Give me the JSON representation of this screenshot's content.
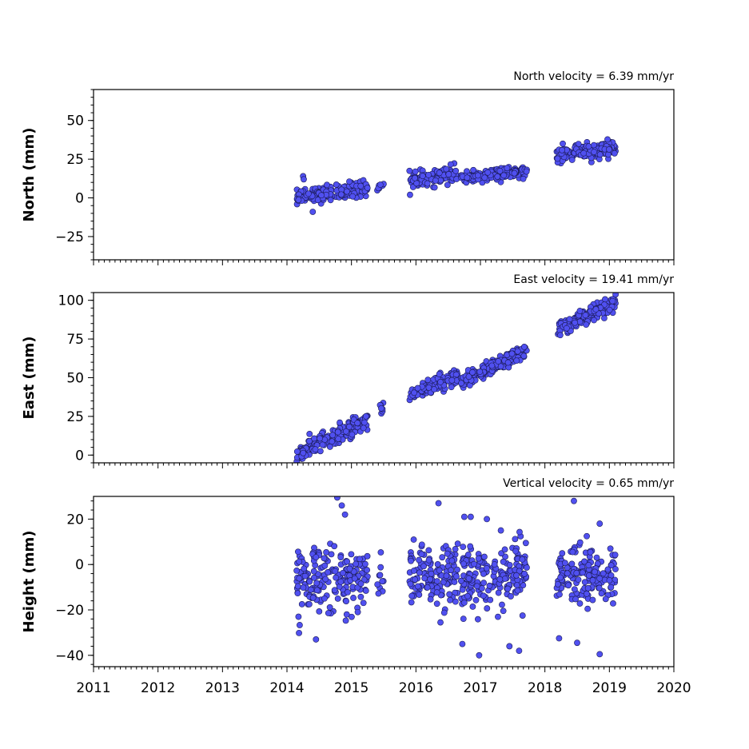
{
  "colors": {
    "marker_fill": "#5050f0",
    "marker_edge": "#1a1a55",
    "axes": "#000000",
    "background": "#ffffff"
  },
  "chart_data": [
    {
      "type": "scatter",
      "ylabel": "North (mm)",
      "annotation": "North velocity = 6.39 mm/yr",
      "xlim": [
        2011,
        2020
      ],
      "ylim": [
        -40,
        70
      ],
      "yticks": [
        -25,
        0,
        25,
        50
      ],
      "xticks": [
        2011,
        2012,
        2013,
        2014,
        2015,
        2016,
        2017,
        2018,
        2019,
        2020
      ],
      "show_xticklabels": false,
      "velocity_mm_per_yr": 6.39,
      "segments": [
        {
          "start": 2014.15,
          "end": 2015.25,
          "y_at_2014": -1.0,
          "slope": 6.39,
          "scatter": 2.5,
          "n": 190
        },
        {
          "start": 2015.4,
          "end": 2015.5,
          "y_at_2014": -1.0,
          "slope": 6.39,
          "scatter": 2.0,
          "n": 8
        },
        {
          "start": 2015.9,
          "end": 2016.65,
          "y_at_2014": -1.5,
          "slope": 6.39,
          "scatter": 2.5,
          "n": 120
        },
        {
          "start": 2016.7,
          "end": 2017.72,
          "y_at_2014": 1.5,
          "slope": 4.2,
          "scatter": 1.8,
          "n": 170
        },
        {
          "start": 2018.18,
          "end": 2019.1,
          "y_at_2014": 0.0,
          "slope": 6.39,
          "scatter": 2.5,
          "n": 160
        }
      ],
      "outliers": [
        {
          "x": 2014.25,
          "y": 14
        },
        {
          "x": 2014.26,
          "y": 12
        },
        {
          "x": 2014.4,
          "y": -9
        }
      ]
    },
    {
      "type": "scatter",
      "ylabel": "East (mm)",
      "annotation": "East velocity = 19.41 mm/yr",
      "xlim": [
        2011,
        2020
      ],
      "ylim": [
        -5,
        105
      ],
      "yticks": [
        0,
        25,
        50,
        75,
        100
      ],
      "xticks": [
        2011,
        2012,
        2013,
        2014,
        2015,
        2016,
        2017,
        2018,
        2019,
        2020
      ],
      "show_xticklabels": false,
      "velocity_mm_per_yr": 19.41,
      "segments": [
        {
          "start": 2014.15,
          "end": 2015.25,
          "y_at_2014": -2.0,
          "slope": 19.41,
          "scatter": 2.8,
          "n": 190
        },
        {
          "start": 2015.4,
          "end": 2015.5,
          "y_at_2014": 2.0,
          "slope": 19.41,
          "scatter": 3.0,
          "n": 8
        },
        {
          "start": 2015.9,
          "end": 2016.65,
          "y_at_2014": 1.0,
          "slope": 19.41,
          "scatter": 2.5,
          "n": 120
        },
        {
          "start": 2016.7,
          "end": 2017.72,
          "y_at_2014": -5.0,
          "slope": 19.41,
          "scatter": 2.5,
          "n": 170
        },
        {
          "start": 2018.18,
          "end": 2019.1,
          "y_at_2014": -0.5,
          "slope": 19.41,
          "scatter": 2.5,
          "n": 160
        }
      ],
      "outliers": []
    },
    {
      "type": "scatter",
      "ylabel": "Height (mm)",
      "annotation": "Vertical velocity = 0.65 mm/yr",
      "xlim": [
        2011,
        2020
      ],
      "ylim": [
        -45,
        30
      ],
      "yticks": [
        -40,
        -20,
        0,
        20
      ],
      "xticks": [
        2011,
        2012,
        2013,
        2014,
        2015,
        2016,
        2017,
        2018,
        2019,
        2020
      ],
      "xticklabels": [
        "2011",
        "2012",
        "2013",
        "2014",
        "2015",
        "2016",
        "2017",
        "2018",
        "2019",
        "2020"
      ],
      "show_xticklabels": true,
      "velocity_mm_per_yr": 0.65,
      "segments": [
        {
          "start": 2014.15,
          "end": 2015.25,
          "y_at_2014": -7.0,
          "slope": 0.65,
          "scatter": 7.0,
          "n": 190
        },
        {
          "start": 2015.4,
          "end": 2015.5,
          "y_at_2014": -7.0,
          "slope": 0.65,
          "scatter": 6.0,
          "n": 10
        },
        {
          "start": 2015.9,
          "end": 2016.65,
          "y_at_2014": -6.5,
          "slope": 0.65,
          "scatter": 7.0,
          "n": 130
        },
        {
          "start": 2016.7,
          "end": 2017.72,
          "y_at_2014": -7.5,
          "slope": 0.65,
          "scatter": 7.5,
          "n": 180
        },
        {
          "start": 2018.18,
          "end": 2019.1,
          "y_at_2014": -8.0,
          "slope": 0.65,
          "scatter": 7.0,
          "n": 160
        }
      ],
      "outliers": [
        {
          "x": 2014.78,
          "y": 29.5
        },
        {
          "x": 2014.85,
          "y": 26
        },
        {
          "x": 2014.9,
          "y": 22
        },
        {
          "x": 2016.35,
          "y": 27
        },
        {
          "x": 2016.75,
          "y": 21
        },
        {
          "x": 2016.85,
          "y": 21
        },
        {
          "x": 2017.1,
          "y": 20
        },
        {
          "x": 2018.45,
          "y": 28
        },
        {
          "x": 2018.85,
          "y": 18
        },
        {
          "x": 2016.98,
          "y": -40
        },
        {
          "x": 2016.72,
          "y": -35
        },
        {
          "x": 2017.45,
          "y": -36
        },
        {
          "x": 2017.6,
          "y": -38
        },
        {
          "x": 2018.85,
          "y": -39.5
        },
        {
          "x": 2018.5,
          "y": -34.5
        },
        {
          "x": 2018.22,
          "y": -32.5
        },
        {
          "x": 2014.45,
          "y": -33
        }
      ]
    }
  ]
}
